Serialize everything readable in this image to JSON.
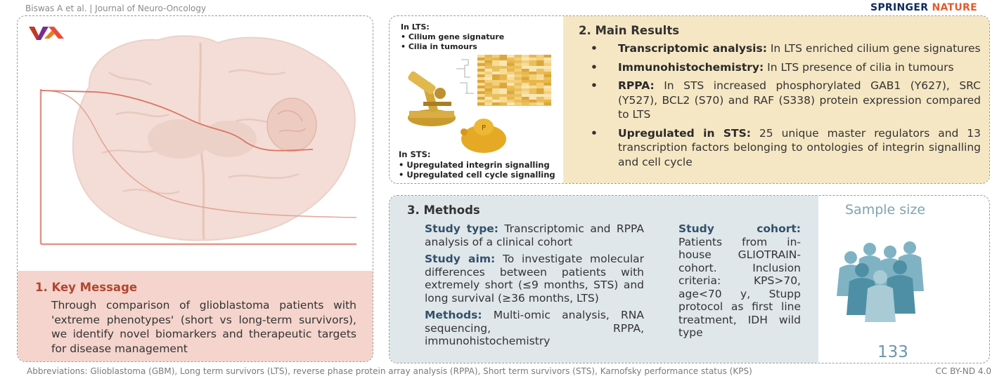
{
  "header": {
    "citation": "Biswas A et al. | Journal of Neuro-Oncology",
    "publisher_part1": "SPRINGER",
    "publisher_part2": "NATURE"
  },
  "key_message": {
    "heading": "1. Key Message",
    "body": "Through comparison of glioblastoma patients with 'extreme phenotypes' (short vs long-term survivors), we identify novel biomarkers and therapeutic targets for disease management"
  },
  "illustration": {
    "lts_label": "In LTS:",
    "lts_items": [
      "• Cilium gene signature",
      "• Cilia in tumours"
    ],
    "sts_label": "In STS:",
    "sts_items": [
      "• Upregulated integrin signalling",
      "• Upregulated cell cycle signalling"
    ],
    "phospho_symbol": "P"
  },
  "main_results": {
    "heading": "2. Main Results",
    "bullet": "•",
    "items": [
      {
        "term": "Transcriptomic analysis:",
        "text": " In LTS enriched cilium gene signatures"
      },
      {
        "term": "Immunohistochemistry:",
        "text": " In LTS presence of cilia in tumours"
      },
      {
        "term": "RPPA:",
        "text": " In STS increased phosphorylated GAB1 (Y627), SRC (Y527), BCL2 (S70) and RAF (S338) protein expression compared to LTS"
      },
      {
        "term": "Upregulated in STS:",
        "text": " 25 unique master regulators and 13 transcription factors belonging to ontologies of integrin signalling and cell cycle"
      }
    ]
  },
  "methods": {
    "heading": "3. Methods",
    "study_type_term": "Study type:",
    "study_type_text": " Transcriptomic and RPPA analysis of a clinical cohort",
    "study_aim_term": "Study aim:",
    "study_aim_text": " To investigate molecular differences between patients with extremely short (≤9 months, STS) and long survival (≥36 months, LTS)",
    "methods_term": "Methods:",
    "methods_text": " Multi-omic analysis, RNA sequencing, RPPA, immunohistochemistry",
    "cohort_term": "Study cohort:",
    "cohort_text": " Patients from in-house GLIOTRAIN-cohort. Inclusion criteria: KPS>70, age<70 y, Stupp protocol as first line treatment, IDH wild type"
  },
  "sample_size": {
    "title": "Sample size",
    "value": "133"
  },
  "footer": {
    "abbreviations": "Abbreviations: Glioblastoma (GBM),  Long term survivors (LTS), reverse phase protein array analysis (RPPA), Short term survivors (STS), Karnofsky performance status (KPS)",
    "license": "CC BY-ND 4.0"
  },
  "colors": {
    "key_message_bg": "#f4d4cc",
    "results_bg": "#f6e7c4",
    "methods_bg": "#dfe7ea",
    "accent_red": "#b24630",
    "sample_blue": "#7ea3b3"
  }
}
